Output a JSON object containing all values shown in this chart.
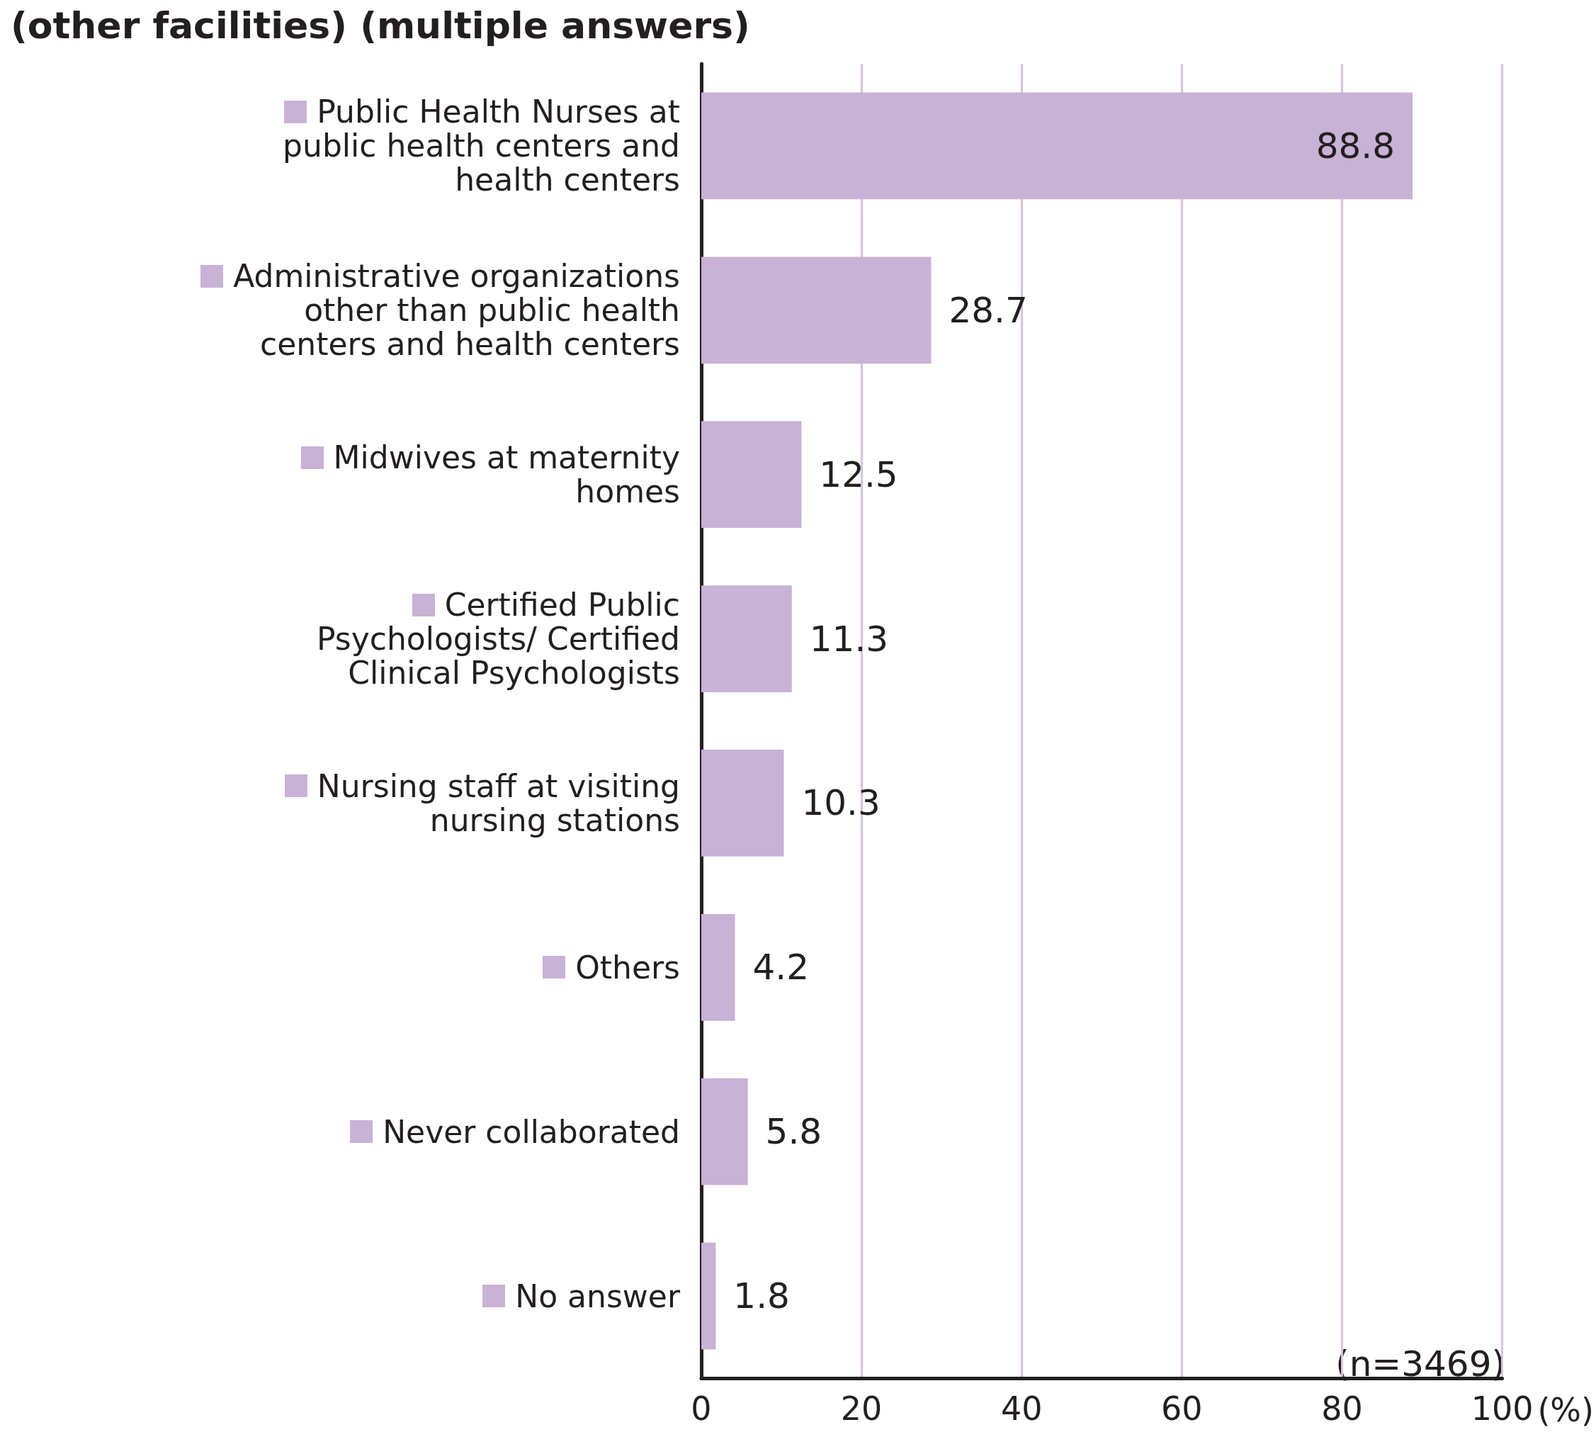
{
  "chart_data": {
    "type": "bar",
    "orientation": "horizontal",
    "title": "(other facilities) (multiple answers)",
    "categories": [
      "Public Health Nurses at public health centers and health centers",
      "Administrative organizations other than public health centers and health centers",
      "Midwives at maternity homes",
      "Certified Public Psychologists/ Certified Clinical Psychologists",
      "Nursing staff at visiting nursing stations",
      "Others",
      "Never collaborated",
      "No answer"
    ],
    "values": [
      88.8,
      28.7,
      12.5,
      11.3,
      10.3,
      4.2,
      5.8,
      1.8
    ],
    "color": "#c8b2d6",
    "xlim": [
      0,
      100
    ],
    "xticks": [
      0,
      20,
      40,
      60,
      80,
      100
    ],
    "xlabel": "(%)",
    "grid": "x",
    "data_labels": true,
    "annotations": [
      "(n=3469)"
    ]
  }
}
